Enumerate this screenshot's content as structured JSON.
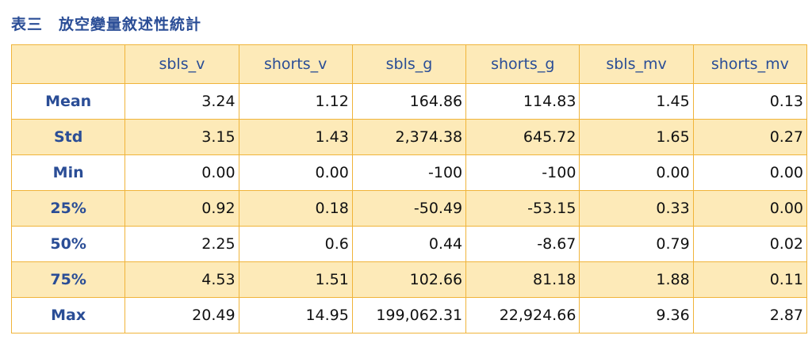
{
  "title": "表三　放空變量敘述性統計",
  "table": {
    "columns": [
      "sbls_v",
      "shorts_v",
      "sbls_g",
      "shorts_g",
      "sbls_mv",
      "shorts_mv"
    ],
    "rows": [
      {
        "label": "Mean",
        "values": [
          "3.24",
          "1.12",
          "164.86",
          "114.83",
          "1.45",
          "0.13"
        ]
      },
      {
        "label": "Std",
        "values": [
          "3.15",
          "1.43",
          "2,374.38",
          "645.72",
          "1.65",
          "0.27"
        ]
      },
      {
        "label": "Min",
        "values": [
          "0.00",
          "0.00",
          "-100",
          "-100",
          "0.00",
          "0.00"
        ]
      },
      {
        "label": "25%",
        "values": [
          "0.92",
          "0.18",
          "-50.49",
          "-53.15",
          "0.33",
          "0.00"
        ]
      },
      {
        "label": "50%",
        "values": [
          "2.25",
          "0.6",
          "0.44",
          "-8.67",
          "0.79",
          "0.02"
        ]
      },
      {
        "label": "75%",
        "values": [
          "4.53",
          "1.51",
          "102.66",
          "81.18",
          "1.88",
          "0.11"
        ]
      },
      {
        "label": "Max",
        "values": [
          "20.49",
          "14.95",
          "199,062.31",
          "22,924.66",
          "9.36",
          "2.87"
        ]
      }
    ]
  }
}
